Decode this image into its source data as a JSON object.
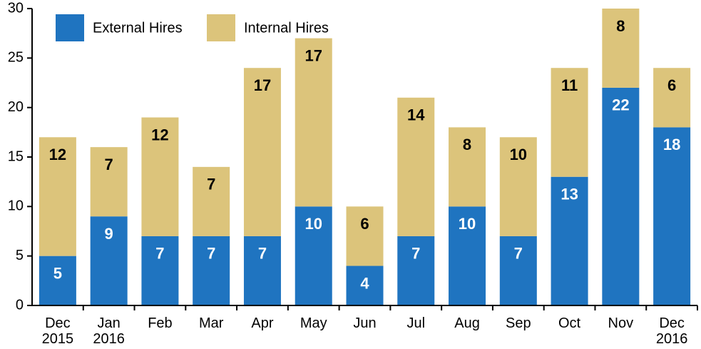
{
  "chart_data": {
    "type": "stacked_bar",
    "categories": [
      "Dec 2015",
      "Jan 2016",
      "Feb",
      "Mar",
      "Apr",
      "May",
      "Jun",
      "Jul",
      "Aug",
      "Sep",
      "Oct",
      "Nov",
      "Dec 2016"
    ],
    "series": [
      {
        "name": "External Hires",
        "color": "#1f74c0",
        "label_color": "#ffffff",
        "values": [
          5,
          9,
          7,
          7,
          7,
          10,
          4,
          7,
          10,
          7,
          13,
          22,
          18
        ]
      },
      {
        "name": "Internal Hires",
        "color": "#dcc47b",
        "label_color": "#000000",
        "values": [
          12,
          7,
          12,
          7,
          17,
          17,
          6,
          14,
          8,
          10,
          11,
          8,
          6
        ]
      }
    ],
    "ylim": [
      0,
      30
    ],
    "yticks": [
      0,
      5,
      10,
      15,
      20,
      25,
      30
    ],
    "legend": "top-left"
  }
}
